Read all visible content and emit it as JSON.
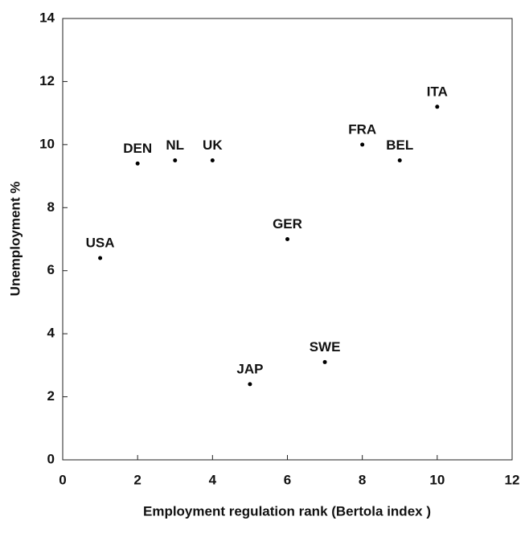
{
  "chart_data": {
    "type": "scatter",
    "x_label": "Employment regulation rank (Bertola index )",
    "y_label": "Unemployment %",
    "series": [
      {
        "labels": [
          "USA",
          "DEN",
          "NL",
          "UK",
          "JAP",
          "GER",
          "SWE",
          "FRA",
          "BEL",
          "ITA"
        ],
        "x": [
          1,
          2,
          3,
          4,
          5,
          6,
          7,
          8,
          9,
          10
        ],
        "values": [
          6.4,
          9.4,
          9.5,
          9.5,
          2.4,
          7.0,
          3.1,
          10.0,
          9.5,
          11.2
        ],
        "color": "#000000"
      }
    ],
    "xlim": [
      0,
      12
    ],
    "xticks": [
      0,
      2,
      4,
      6,
      8,
      10,
      12
    ],
    "ylim": [
      0,
      14
    ],
    "yticks": [
      0,
      2,
      4,
      6,
      8,
      10,
      12,
      14
    ]
  }
}
